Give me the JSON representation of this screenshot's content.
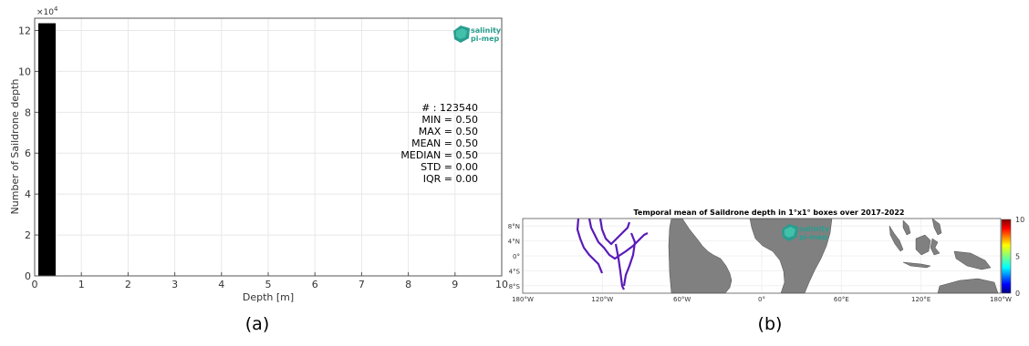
{
  "figure": {
    "panel_a_label": "(a)",
    "panel_b_label": "(b)"
  },
  "logo": {
    "line1": "salinity",
    "line2": "pi-mep"
  },
  "chart_data": [
    {
      "type": "bar",
      "title": "",
      "xlabel": "Depth [m]",
      "ylabel": "Number of Saildrone depth",
      "y_multiplier": "×10^4",
      "xlim": [
        0,
        10
      ],
      "ylim": [
        0,
        12.6
      ],
      "x_ticks": [
        "0",
        "1",
        "2",
        "3",
        "4",
        "5",
        "6",
        "7",
        "8",
        "9",
        "10"
      ],
      "y_ticks": [
        "0",
        "2",
        "4",
        "6",
        "8",
        "10",
        "12"
      ],
      "grid": true,
      "bars": [
        {
          "x0": 0.0,
          "x1": 0.45,
          "value": 12.354,
          "color": "#000000"
        }
      ],
      "stats": [
        "# : 123540",
        "MIN = 0.50",
        "MAX =  0.50",
        "MEAN = 0.50",
        "MEDIAN = 0.50",
        "STD = 0.00",
        "IQR = 0.00"
      ]
    },
    {
      "type": "heatmap",
      "title": "Temporal mean of Saildrone depth in 1°x1° boxes over 2017-2022",
      "x_ticks": [
        "180°W",
        "120°W",
        "60°W",
        "0°",
        "60°E",
        "120°E",
        "180°W"
      ],
      "y_ticks": [
        "8°N",
        "4°N",
        "0°",
        "4°S",
        "8°S"
      ],
      "xlim": [
        -180,
        180
      ],
      "ylim": [
        -10,
        10
      ],
      "colorbar": {
        "min": 0,
        "max": 10,
        "ticks": [
          "10",
          "5",
          "0"
        ]
      },
      "land_color": "#808080",
      "data_color": "#5a1ab8",
      "grid": true
    }
  ]
}
